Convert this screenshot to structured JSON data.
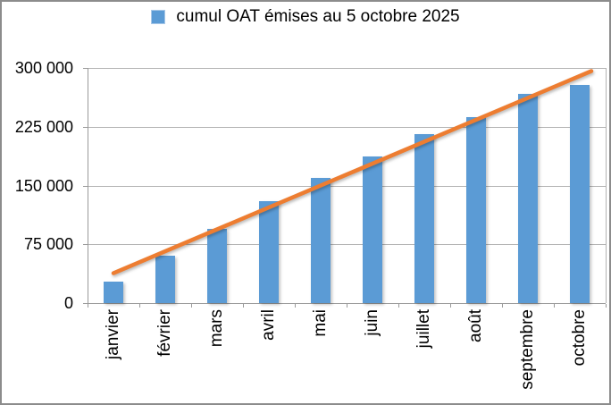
{
  "chart_data": {
    "type": "bar",
    "title": "cumul OAT émises au 5 octobre 2025",
    "legend_position": "top",
    "categories": [
      "janvier",
      "février",
      "mars",
      "avril",
      "mai",
      "juin",
      "juillet",
      "août",
      "septembre",
      "octobre"
    ],
    "values": [
      27500,
      60000,
      95000,
      129500,
      160000,
      187000,
      216000,
      237500,
      266500,
      278000
    ],
    "xlabel": "",
    "ylabel": "",
    "ylim": [
      0,
      300000
    ],
    "y_tick_step": 75000,
    "y_tick_labels": [
      "0",
      "75 000",
      "150 000",
      "225 000",
      "300 000"
    ],
    "grid": "horizontal",
    "trendline": {
      "type": "linear",
      "start_value": 38200,
      "end_value": 296000
    },
    "colors": {
      "bar": "#5B9BD5",
      "trendline": "#ED7D31",
      "gridline": "#B3B3B3",
      "axis": "#9A9A9A",
      "text": "#000000",
      "background": "#FFFFFF",
      "frame_border": "#8C8C8C"
    }
  }
}
